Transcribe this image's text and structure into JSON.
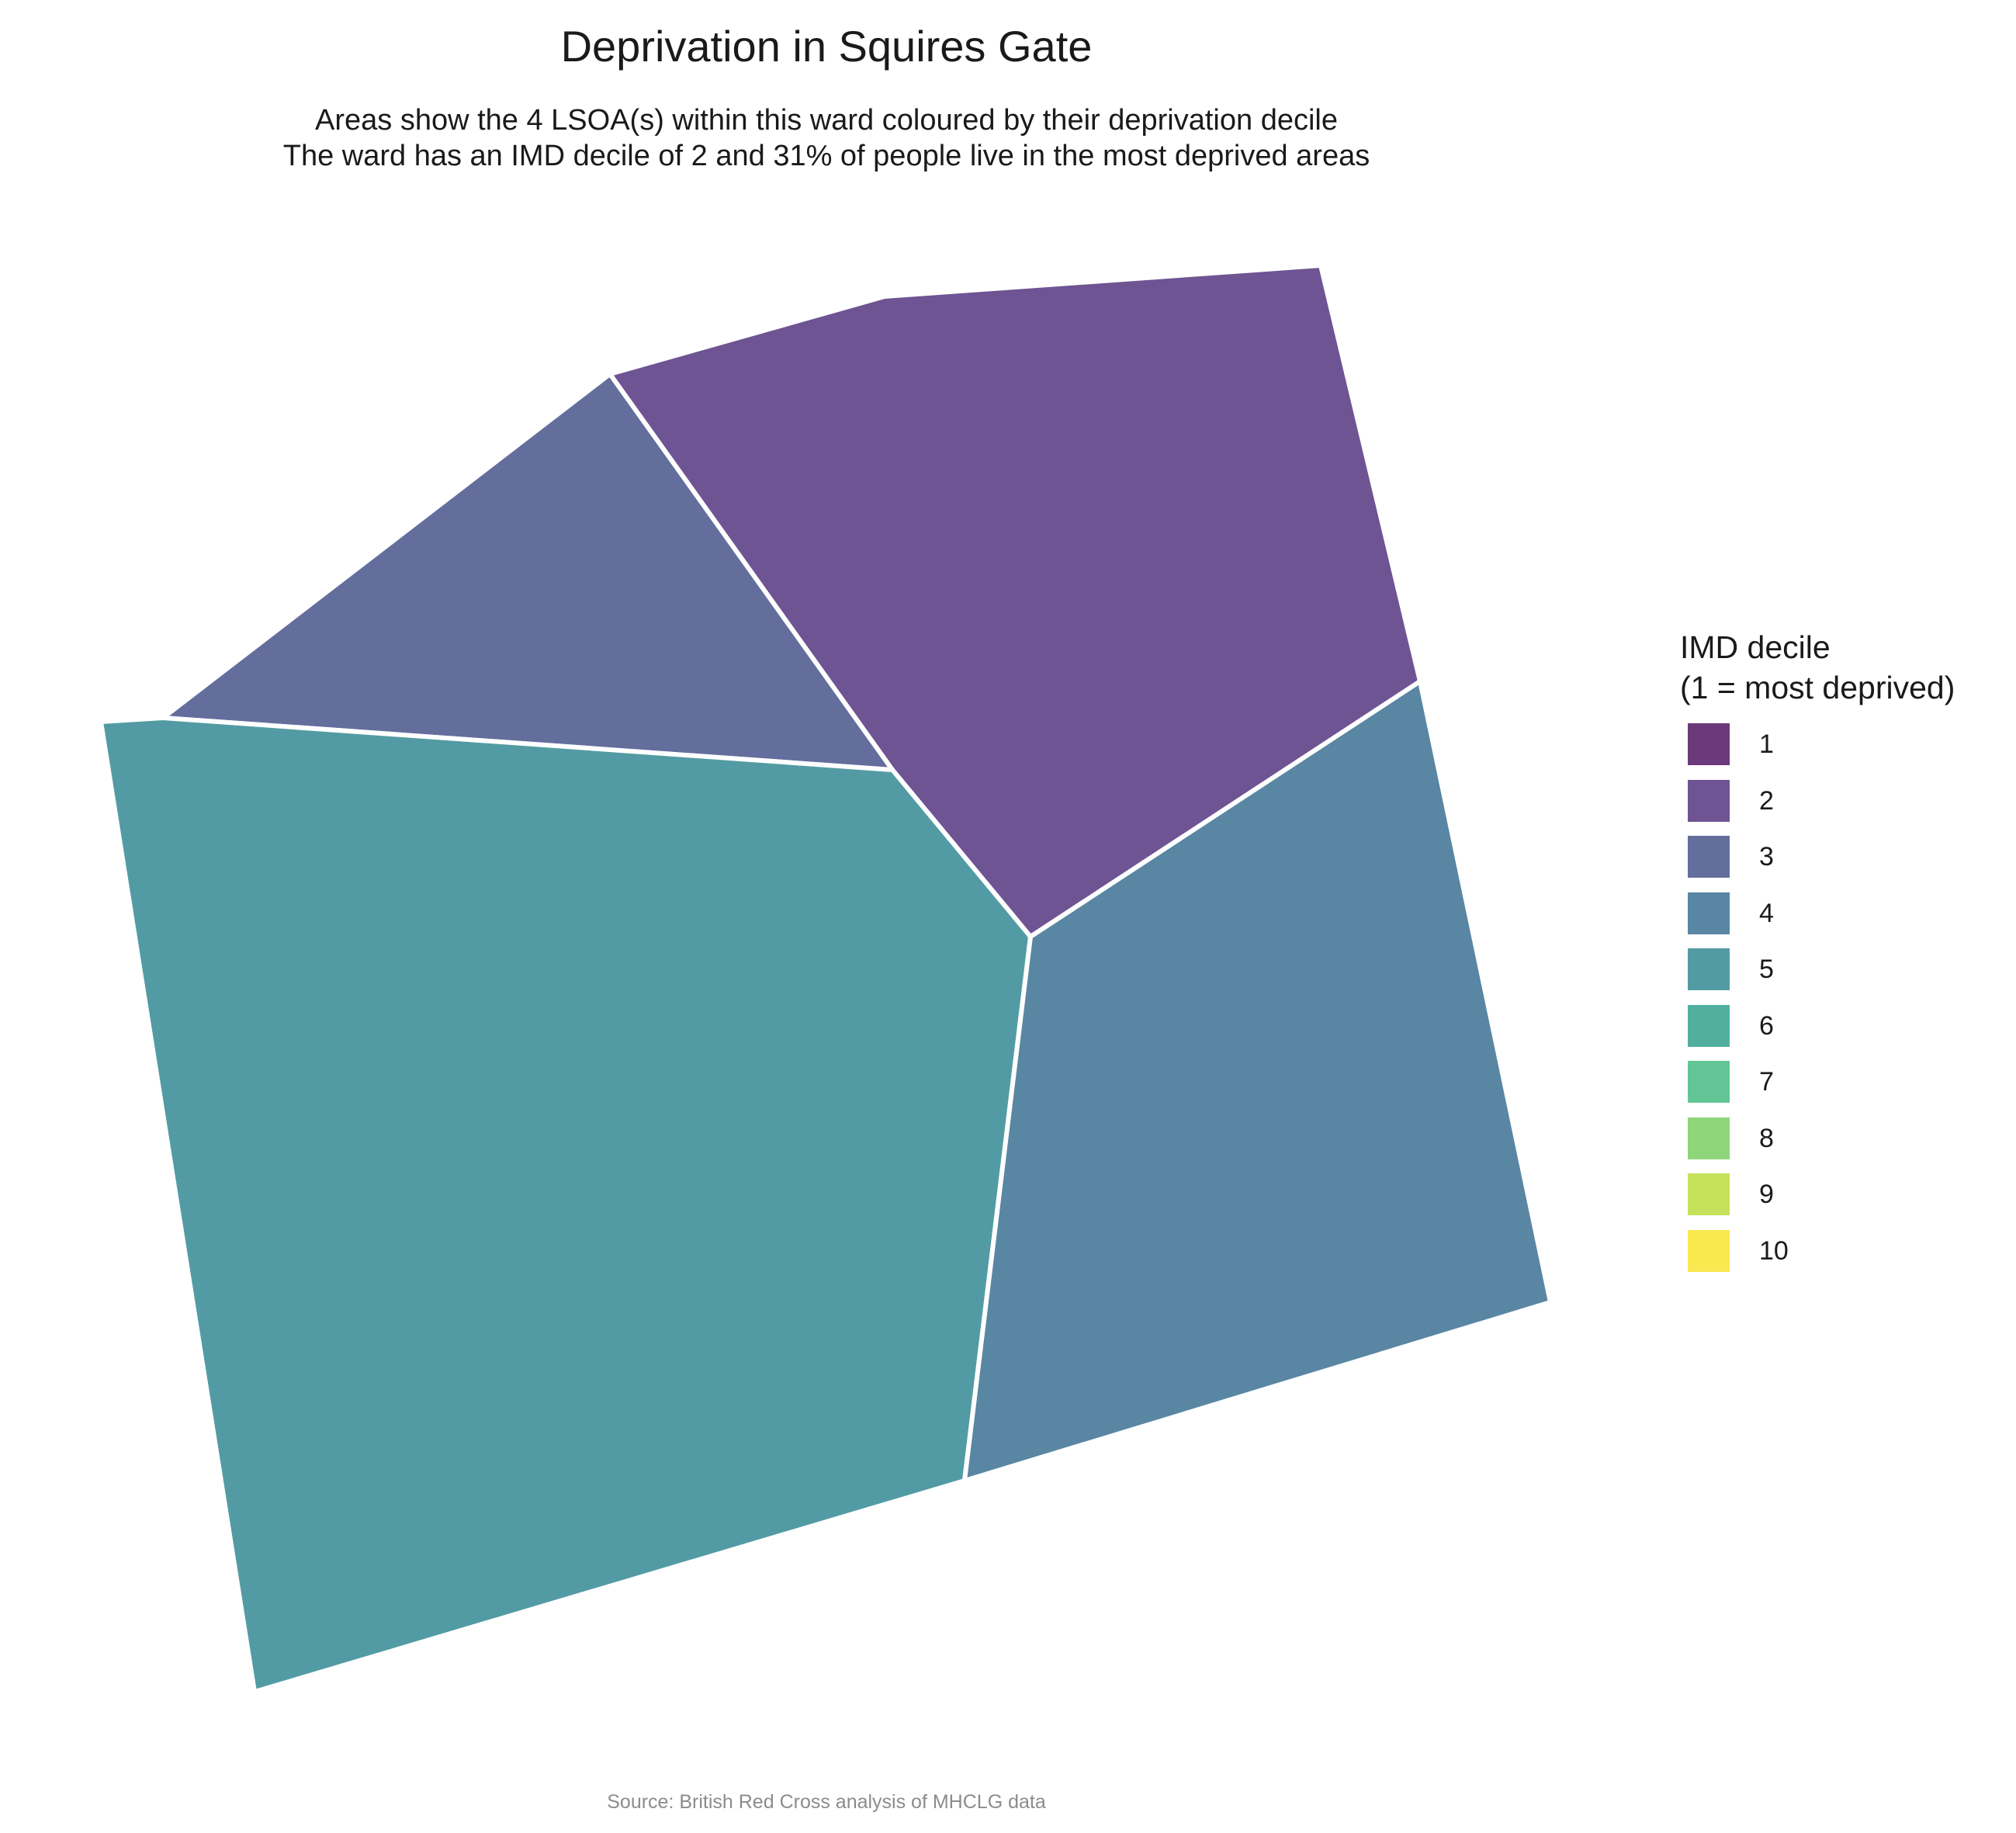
{
  "title": "Deprivation in Squires Gate",
  "subtitle_line1": "Areas show the 4 LSOA(s) within this ward coloured by their deprivation decile",
  "subtitle_line2": "The ward has an IMD decile of 2 and 31% of people live in the most deprived areas",
  "caption": "Source: British Red Cross analysis of MHCLG data",
  "legend": {
    "title_line1": "IMD decile",
    "title_line2": "(1 = most deprived)",
    "items": [
      {
        "label": "1",
        "color": "#6a3a7a"
      },
      {
        "label": "2",
        "color": "#6e5493"
      },
      {
        "label": "3",
        "color": "#636e9d"
      },
      {
        "label": "4",
        "color": "#5986a3"
      },
      {
        "label": "5",
        "color": "#539ba4"
      },
      {
        "label": "6",
        "color": "#50b09d"
      },
      {
        "label": "7",
        "color": "#62c596"
      },
      {
        "label": "8",
        "color": "#8fd67b"
      },
      {
        "label": "9",
        "color": "#c4e25a"
      },
      {
        "label": "10",
        "color": "#fae850"
      }
    ]
  },
  "areas": [
    {
      "name": "lsoa-north",
      "decile": 2,
      "color": "#6e5493"
    },
    {
      "name": "lsoa-northwest",
      "decile": 3,
      "color": "#636e9d"
    },
    {
      "name": "lsoa-west-south",
      "decile": 5,
      "color": "#539ba4"
    },
    {
      "name": "lsoa-east",
      "decile": 4,
      "color": "#5986a3"
    }
  ]
}
